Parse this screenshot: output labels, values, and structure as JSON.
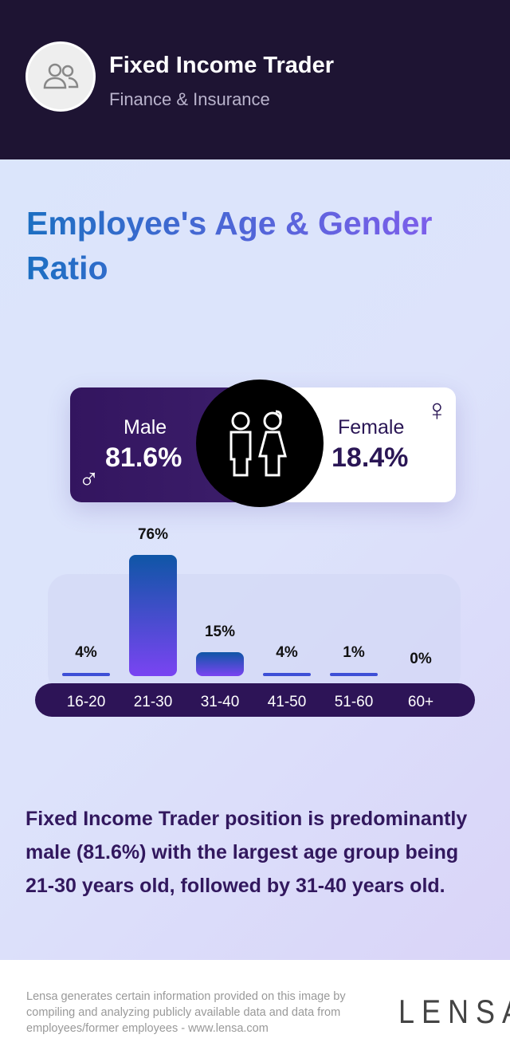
{
  "header": {
    "title": "Fixed Income Trader",
    "industry": "Finance & Insurance",
    "avatar_icon": "users-icon"
  },
  "section_title": "Employee's Age & Gender Ratio",
  "gender": {
    "male_label": "Male",
    "male_value": "81.6%",
    "female_label": "Female",
    "female_value": "18.4%",
    "male_symbol": "♂",
    "female_symbol": "♀",
    "colors": {
      "male": "#33155f",
      "female": "#ffffff"
    }
  },
  "chart_data": {
    "type": "bar",
    "categories": [
      "16-20",
      "21-30",
      "31-40",
      "41-50",
      "51-60",
      "60+"
    ],
    "values": [
      4,
      76,
      15,
      4,
      1,
      0
    ],
    "value_labels": [
      "4%",
      "76%",
      "15%",
      "4%",
      "1%",
      "0%"
    ],
    "title": "",
    "xlabel": "",
    "ylabel": "",
    "ylim": [
      0,
      76
    ],
    "grid": false
  },
  "summary": "Fixed Income Trader position is predominantly male (81.6%) with the largest age group being 21-30 years old, followed by 31-40 years old.",
  "footer": {
    "disclaimer": "Lensa generates certain information provided on this image by compiling and analyzing publicly available data and data from employees/former employees - www.lensa.com",
    "logo": "LENSA"
  }
}
